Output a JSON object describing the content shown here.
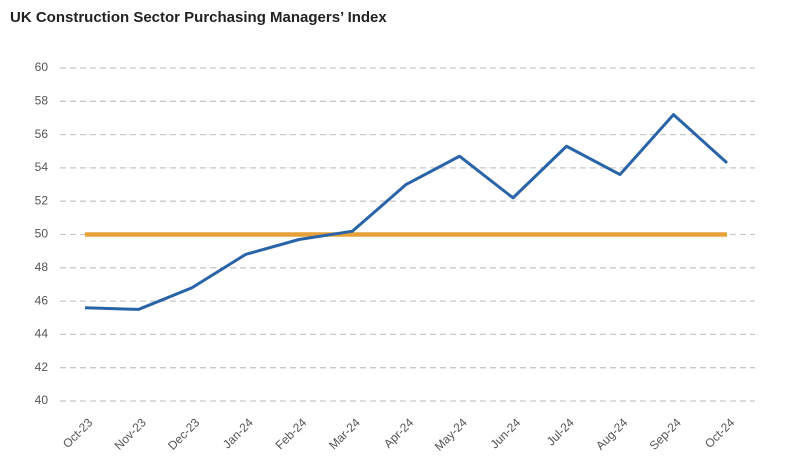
{
  "chart_data": {
    "type": "line",
    "title": "UK Construction Sector Purchasing Managers’ Index",
    "categories": [
      "Oct-23",
      "Nov-23",
      "Dec-23",
      "Jan-24",
      "Feb-24",
      "Mar-24",
      "Apr-24",
      "May-24",
      "Jun-24",
      "Jul-24",
      "Aug-24",
      "Sep-24",
      "Oct-24"
    ],
    "series": [
      {
        "color": "#e8a03a",
        "values": [
          50,
          50,
          50,
          50,
          50,
          50,
          50,
          50,
          50,
          50,
          50,
          50,
          50
        ]
      },
      {
        "color": "#2a64a8",
        "values": [
          45.6,
          45.5,
          46.8,
          48.8,
          49.7,
          50.2,
          53.0,
          54.7,
          52.2,
          55.3,
          53.6,
          57.2,
          54.3
        ]
      }
    ],
    "ylim": [
      40,
      60
    ],
    "yticks": [
      40,
      42,
      44,
      46,
      48,
      50,
      52,
      54,
      56,
      58,
      60
    ],
    "grid": true
  }
}
